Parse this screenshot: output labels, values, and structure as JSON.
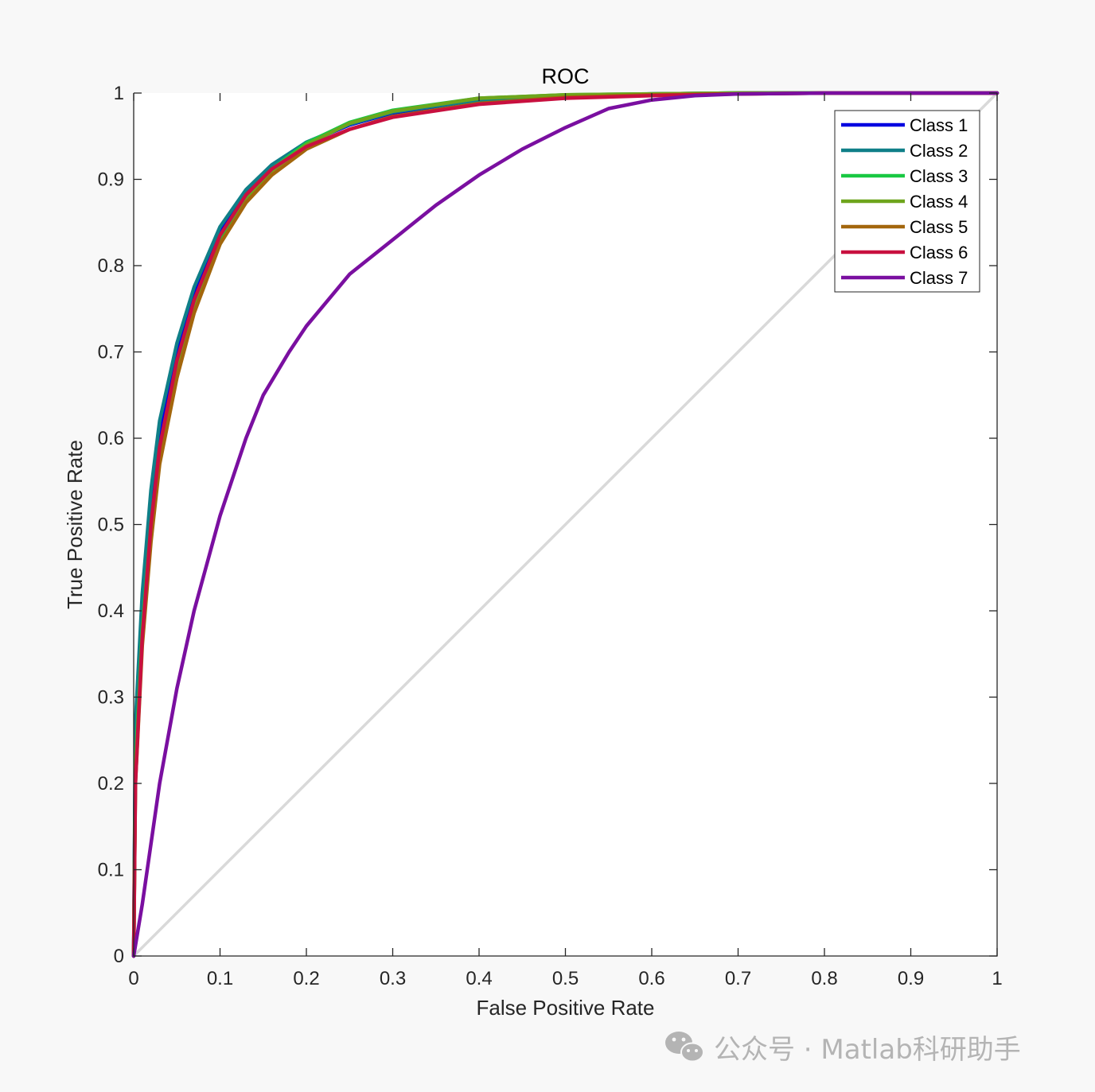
{
  "chart_data": {
    "type": "line",
    "title": "ROC",
    "xlabel": "False Positive Rate",
    "ylabel": "True Positive Rate",
    "xlim": [
      0,
      1
    ],
    "ylim": [
      0,
      1
    ],
    "xticks": [
      "0",
      "0.1",
      "0.2",
      "0.3",
      "0.4",
      "0.5",
      "0.6",
      "0.7",
      "0.8",
      "0.9",
      "1"
    ],
    "yticks": [
      "0",
      "0.1",
      "0.2",
      "0.3",
      "0.4",
      "0.5",
      "0.6",
      "0.7",
      "0.8",
      "0.9",
      "1"
    ],
    "grid": false,
    "legend_position": "top-right",
    "reference_line": {
      "x": [
        0,
        1
      ],
      "y": [
        0,
        1
      ],
      "color": "#d9d9d9"
    },
    "series": [
      {
        "name": "Class 1",
        "color": "#0000e0",
        "x": [
          0,
          0.002,
          0.01,
          0.02,
          0.03,
          0.05,
          0.07,
          0.1,
          0.13,
          0.16,
          0.2,
          0.25,
          0.3,
          0.4,
          0.5,
          0.6,
          0.7,
          0.8,
          1
        ],
        "y": [
          0,
          0.25,
          0.4,
          0.52,
          0.6,
          0.7,
          0.77,
          0.84,
          0.885,
          0.915,
          0.942,
          0.963,
          0.977,
          0.992,
          0.997,
          0.999,
          1.0,
          1.0,
          1.0
        ]
      },
      {
        "name": "Class 2",
        "color": "#0f7f88",
        "x": [
          0,
          0.002,
          0.01,
          0.02,
          0.03,
          0.05,
          0.07,
          0.1,
          0.13,
          0.16,
          0.2,
          0.25,
          0.3,
          0.4,
          0.5,
          0.6,
          0.7,
          0.8,
          1
        ],
        "y": [
          0,
          0.27,
          0.42,
          0.54,
          0.62,
          0.71,
          0.775,
          0.845,
          0.888,
          0.917,
          0.943,
          0.964,
          0.978,
          0.992,
          0.997,
          0.999,
          1.0,
          1.0,
          1.0
        ]
      },
      {
        "name": "Class 3",
        "color": "#19c842",
        "x": [
          0,
          0.002,
          0.01,
          0.02,
          0.03,
          0.05,
          0.07,
          0.1,
          0.13,
          0.16,
          0.2,
          0.25,
          0.3,
          0.4,
          0.5,
          0.6,
          0.7,
          0.8,
          1
        ],
        "y": [
          0,
          0.22,
          0.38,
          0.5,
          0.58,
          0.68,
          0.755,
          0.83,
          0.878,
          0.912,
          0.942,
          0.966,
          0.98,
          0.994,
          0.998,
          0.999,
          1.0,
          1.0,
          1.0
        ]
      },
      {
        "name": "Class 4",
        "color": "#6ea51c",
        "x": [
          0,
          0.002,
          0.01,
          0.02,
          0.03,
          0.05,
          0.07,
          0.1,
          0.13,
          0.16,
          0.2,
          0.25,
          0.3,
          0.4,
          0.5,
          0.6,
          0.7,
          0.8,
          1
        ],
        "y": [
          0,
          0.21,
          0.37,
          0.49,
          0.575,
          0.675,
          0.75,
          0.825,
          0.875,
          0.91,
          0.94,
          0.965,
          0.979,
          0.994,
          0.998,
          0.999,
          1.0,
          1.0,
          1.0
        ]
      },
      {
        "name": "Class 5",
        "color": "#a3660c",
        "x": [
          0,
          0.002,
          0.01,
          0.02,
          0.03,
          0.05,
          0.07,
          0.1,
          0.13,
          0.16,
          0.2,
          0.25,
          0.3,
          0.4,
          0.5,
          0.6,
          0.7,
          0.8,
          1
        ],
        "y": [
          0,
          0.2,
          0.36,
          0.48,
          0.57,
          0.67,
          0.745,
          0.825,
          0.873,
          0.905,
          0.935,
          0.958,
          0.973,
          0.988,
          0.995,
          0.998,
          0.999,
          1.0,
          1.0
        ]
      },
      {
        "name": "Class 6",
        "color": "#c8103f",
        "x": [
          0,
          0.002,
          0.01,
          0.02,
          0.03,
          0.05,
          0.07,
          0.1,
          0.13,
          0.16,
          0.2,
          0.25,
          0.3,
          0.4,
          0.5,
          0.6,
          0.7,
          0.8,
          1
        ],
        "y": [
          0,
          0.2,
          0.37,
          0.5,
          0.59,
          0.69,
          0.76,
          0.835,
          0.882,
          0.912,
          0.938,
          0.958,
          0.972,
          0.987,
          0.994,
          0.997,
          0.999,
          1.0,
          1.0
        ]
      },
      {
        "name": "Class 7",
        "color": "#7a0fa0",
        "x": [
          0,
          0.01,
          0.02,
          0.03,
          0.05,
          0.07,
          0.1,
          0.13,
          0.15,
          0.18,
          0.2,
          0.25,
          0.3,
          0.35,
          0.4,
          0.45,
          0.5,
          0.55,
          0.6,
          0.65,
          0.7,
          0.8,
          1
        ],
        "y": [
          0,
          0.06,
          0.13,
          0.2,
          0.31,
          0.4,
          0.51,
          0.6,
          0.65,
          0.7,
          0.73,
          0.79,
          0.83,
          0.87,
          0.905,
          0.935,
          0.96,
          0.982,
          0.992,
          0.997,
          0.999,
          1.0,
          1.0
        ]
      }
    ]
  },
  "watermark": {
    "text": "公众号 · Matlab科研助手"
  }
}
